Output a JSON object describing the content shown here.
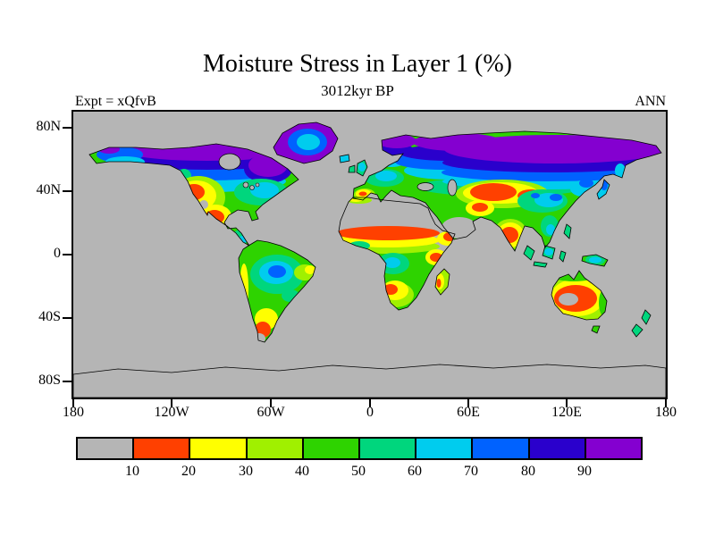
{
  "title": "Moisture Stress in Layer 1 (%)",
  "subtitle": "3012kyr BP",
  "header": {
    "experiment_label": "Expt = xQfvB",
    "period_label": "ANN"
  },
  "axes": {
    "lat_ticks": [
      "80N",
      "40N",
      "0",
      "40S",
      "80S"
    ],
    "lon_ticks": [
      "180",
      "120W",
      "60W",
      "0",
      "60E",
      "120E",
      "180"
    ]
  },
  "colorbar": {
    "tick_labels": [
      "10",
      "20",
      "30",
      "40",
      "50",
      "60",
      "70",
      "80",
      "90"
    ],
    "colors": [
      "#b5b5b5",
      "#ff4000",
      "#ffff00",
      "#a0f000",
      "#2ed300",
      "#00d67d",
      "#00ccee",
      "#0062ff",
      "#2a00cc",
      "#8400d0"
    ]
  },
  "chart_data": {
    "type": "heatmap",
    "title": "Moisture Stress in Layer 1 (%)",
    "subtitle": "3012kyr BP",
    "experiment": "Expt = xQfvB",
    "season": "ANN",
    "variable": "Moisture Stress in Layer 1",
    "units": "%",
    "projection": "equirectangular world map; land-only filled contours; ocean and sub-threshold land masked gray",
    "lon_range": [
      -180,
      180
    ],
    "lat_range": [
      -90,
      90
    ],
    "lon_tick_labels": [
      "180",
      "120W",
      "60W",
      "0",
      "60E",
      "120E",
      "180"
    ],
    "lat_tick_labels": [
      "80N",
      "40N",
      "0",
      "40S",
      "80S"
    ],
    "contour_levels": [
      10,
      20,
      30,
      40,
      50,
      60,
      70,
      80,
      90
    ],
    "palette": [
      "#b5b5b5",
      "#ff4000",
      "#ffff00",
      "#a0f000",
      "#2ed300",
      "#00d67d",
      "#00ccee",
      "#0062ff",
      "#2a00cc",
      "#8400d0"
    ],
    "legend_position": "bottom horizontal colorbar",
    "regions": [
      {
        "region": "Ocean / Antarctica / Sahara / Arabia (masked)",
        "approx_percent": "<10"
      },
      {
        "region": "Arctic Canada, Greenland margins, northern Siberia",
        "approx_percent": ">90"
      },
      {
        "region": "Greenland interior",
        "approx_percent": "70-90"
      },
      {
        "region": "Alaska and boreal Canada",
        "approx_percent": "60-90"
      },
      {
        "region": "Eastern North America",
        "approx_percent": "40-70"
      },
      {
        "region": "Western US interior and Mexico",
        "approx_percent": "10-40"
      },
      {
        "region": "Amazon basin core",
        "approx_percent": "60-80"
      },
      {
        "region": "Andes strip and Patagonia",
        "approx_percent": "<10-30"
      },
      {
        "region": "Sahel belt (south of Sahara)",
        "approx_percent": "10-40 increasing southward"
      },
      {
        "region": "Congo basin",
        "approx_percent": "50-70"
      },
      {
        "region": "East and southern Africa dry patches",
        "approx_percent": "10-30"
      },
      {
        "region": "Europe and Scandinavia",
        "approx_percent": "40-80"
      },
      {
        "region": "Central Asia (Kazakhstan-Mongolia)",
        "approx_percent": "10-40"
      },
      {
        "region": "India interior",
        "approx_percent": "10-30"
      },
      {
        "region": "China / Tibet / Northeast Asia",
        "approx_percent": "50-80"
      },
      {
        "region": "Southeast Asia and Indonesia",
        "approx_percent": "50-70"
      },
      {
        "region": "Australian interior",
        "approx_percent": "<10-20 with 20-40 coastal fringe"
      }
    ]
  }
}
